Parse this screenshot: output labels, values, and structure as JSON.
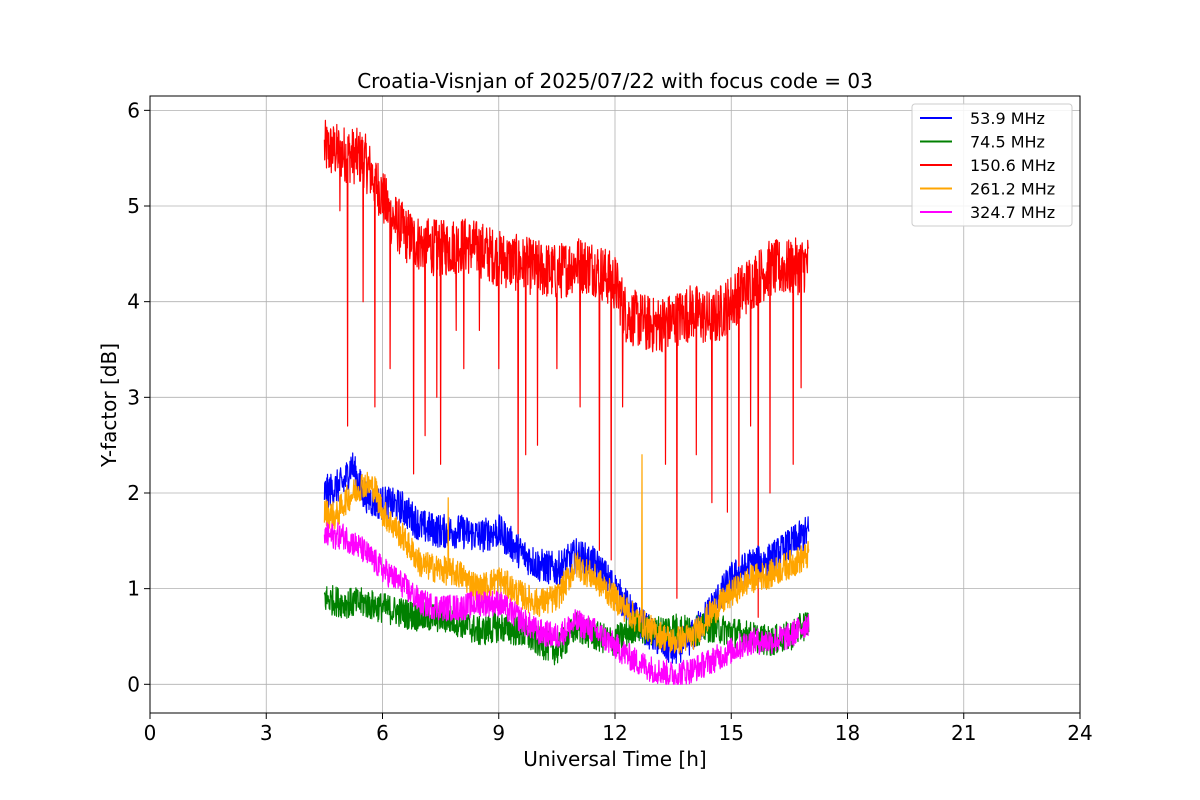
{
  "chart_data": {
    "type": "line",
    "title": "Croatia-Visnjan of 2025/07/22 with focus code = 03",
    "xlabel": "Universal Time [h]",
    "ylabel": "Y-factor [dB]",
    "xlim": [
      0,
      24
    ],
    "ylim": [
      -0.3,
      6.15
    ],
    "xticks": [
      0,
      3,
      6,
      9,
      12,
      15,
      18,
      21,
      24
    ],
    "yticks": [
      0,
      1,
      2,
      3,
      4,
      5,
      6
    ],
    "grid": true,
    "legend_position": "top-right",
    "series": [
      {
        "name": "53.9 MHz",
        "color": "#0000ff",
        "x": [
          4.5,
          5.0,
          5.2,
          5.5,
          5.8,
          6.0,
          6.5,
          7.0,
          7.5,
          8.0,
          8.5,
          9.0,
          9.5,
          10.0,
          10.5,
          11.0,
          11.5,
          12.0,
          12.5,
          13.0,
          13.5,
          14.0,
          14.5,
          15.0,
          15.5,
          16.0,
          16.5,
          17.0
        ],
        "y": [
          2.0,
          2.1,
          2.3,
          2.0,
          1.9,
          1.9,
          1.85,
          1.65,
          1.6,
          1.6,
          1.55,
          1.6,
          1.4,
          1.25,
          1.2,
          1.35,
          1.25,
          1.0,
          0.7,
          0.5,
          0.35,
          0.5,
          0.8,
          1.1,
          1.25,
          1.3,
          1.45,
          1.6
        ]
      },
      {
        "name": "74.5 MHz",
        "color": "#008000",
        "x": [
          4.5,
          5.0,
          5.5,
          6.0,
          6.5,
          7.0,
          7.5,
          8.0,
          8.5,
          9.0,
          9.5,
          10.0,
          10.5,
          11.0,
          11.5,
          12.0,
          12.5,
          13.0,
          13.5,
          14.0,
          14.5,
          15.0,
          15.5,
          16.0,
          16.5,
          17.0
        ],
        "y": [
          0.9,
          0.85,
          0.85,
          0.8,
          0.75,
          0.7,
          0.7,
          0.65,
          0.55,
          0.6,
          0.55,
          0.45,
          0.35,
          0.6,
          0.5,
          0.45,
          0.6,
          0.55,
          0.6,
          0.55,
          0.6,
          0.55,
          0.5,
          0.45,
          0.5,
          0.65
        ]
      },
      {
        "name": "150.6 MHz",
        "color": "#ff0000",
        "x": [
          4.5,
          5.0,
          5.5,
          5.9,
          6.2,
          6.6,
          7.0,
          7.5,
          8.0,
          8.5,
          9.0,
          9.5,
          10.0,
          10.5,
          11.0,
          11.5,
          12.0,
          12.3,
          12.7,
          13.0,
          13.5,
          14.0,
          14.5,
          15.0,
          15.5,
          16.0,
          16.5,
          17.0
        ],
        "y": [
          5.6,
          5.55,
          5.5,
          5.2,
          4.9,
          4.7,
          4.6,
          4.55,
          4.6,
          4.55,
          4.45,
          4.4,
          4.35,
          4.3,
          4.4,
          4.35,
          4.2,
          3.85,
          3.8,
          3.75,
          3.8,
          3.9,
          3.8,
          4.0,
          4.2,
          4.35,
          4.35,
          4.4
        ],
        "dips": [
          [
            4.9,
            4.95
          ],
          [
            5.1,
            2.7
          ],
          [
            5.5,
            4.0
          ],
          [
            5.8,
            2.9
          ],
          [
            6.2,
            3.3
          ],
          [
            6.8,
            2.2
          ],
          [
            7.1,
            2.6
          ],
          [
            7.4,
            3.0
          ],
          [
            7.5,
            2.3
          ],
          [
            7.9,
            3.7
          ],
          [
            8.1,
            3.3
          ],
          [
            8.5,
            3.7
          ],
          [
            9.0,
            3.3
          ],
          [
            9.5,
            1.5
          ],
          [
            9.7,
            2.4
          ],
          [
            10.0,
            2.5
          ],
          [
            10.5,
            3.3
          ],
          [
            11.1,
            2.9
          ],
          [
            11.6,
            1.4
          ],
          [
            11.9,
            1.3
          ],
          [
            12.2,
            2.9
          ],
          [
            12.8,
            3.5
          ],
          [
            13.3,
            2.3
          ],
          [
            13.6,
            0.9
          ],
          [
            14.1,
            2.4
          ],
          [
            14.5,
            1.9
          ],
          [
            14.9,
            1.8
          ],
          [
            15.2,
            1.0
          ],
          [
            15.5,
            2.7
          ],
          [
            15.7,
            0.7
          ],
          [
            16.0,
            2.0
          ],
          [
            16.6,
            2.3
          ],
          [
            16.8,
            3.1
          ]
        ]
      },
      {
        "name": "261.2 MHz",
        "color": "#ffa500",
        "x": [
          4.5,
          4.8,
          5.0,
          5.5,
          5.8,
          6.0,
          6.5,
          7.0,
          7.5,
          8.0,
          8.5,
          9.0,
          9.5,
          10.0,
          10.5,
          11.0,
          11.5,
          12.0,
          12.5,
          13.0,
          13.5,
          14.0,
          14.5,
          15.0,
          15.5,
          16.0,
          16.5,
          17.0
        ],
        "y": [
          1.8,
          1.75,
          1.9,
          2.1,
          2.05,
          1.8,
          1.55,
          1.25,
          1.2,
          1.15,
          1.0,
          1.1,
          0.95,
          0.85,
          0.9,
          1.25,
          1.1,
          0.9,
          0.7,
          0.55,
          0.45,
          0.5,
          0.75,
          0.95,
          1.1,
          1.15,
          1.25,
          1.35
        ],
        "spikes": [
          [
            12.7,
            2.4
          ],
          [
            7.7,
            1.95
          ]
        ]
      },
      {
        "name": "324.7 MHz",
        "color": "#ff00ff",
        "x": [
          4.5,
          5.0,
          5.5,
          6.0,
          6.5,
          7.0,
          7.5,
          8.0,
          8.5,
          9.0,
          9.5,
          10.0,
          10.5,
          11.0,
          11.5,
          12.0,
          12.5,
          13.0,
          13.5,
          14.0,
          14.5,
          15.0,
          15.5,
          16.0,
          16.5,
          17.0
        ],
        "y": [
          1.55,
          1.55,
          1.4,
          1.2,
          1.05,
          0.85,
          0.8,
          0.8,
          0.85,
          0.85,
          0.7,
          0.55,
          0.5,
          0.65,
          0.55,
          0.4,
          0.25,
          0.15,
          0.1,
          0.15,
          0.25,
          0.35,
          0.45,
          0.45,
          0.5,
          0.65
        ]
      }
    ]
  }
}
